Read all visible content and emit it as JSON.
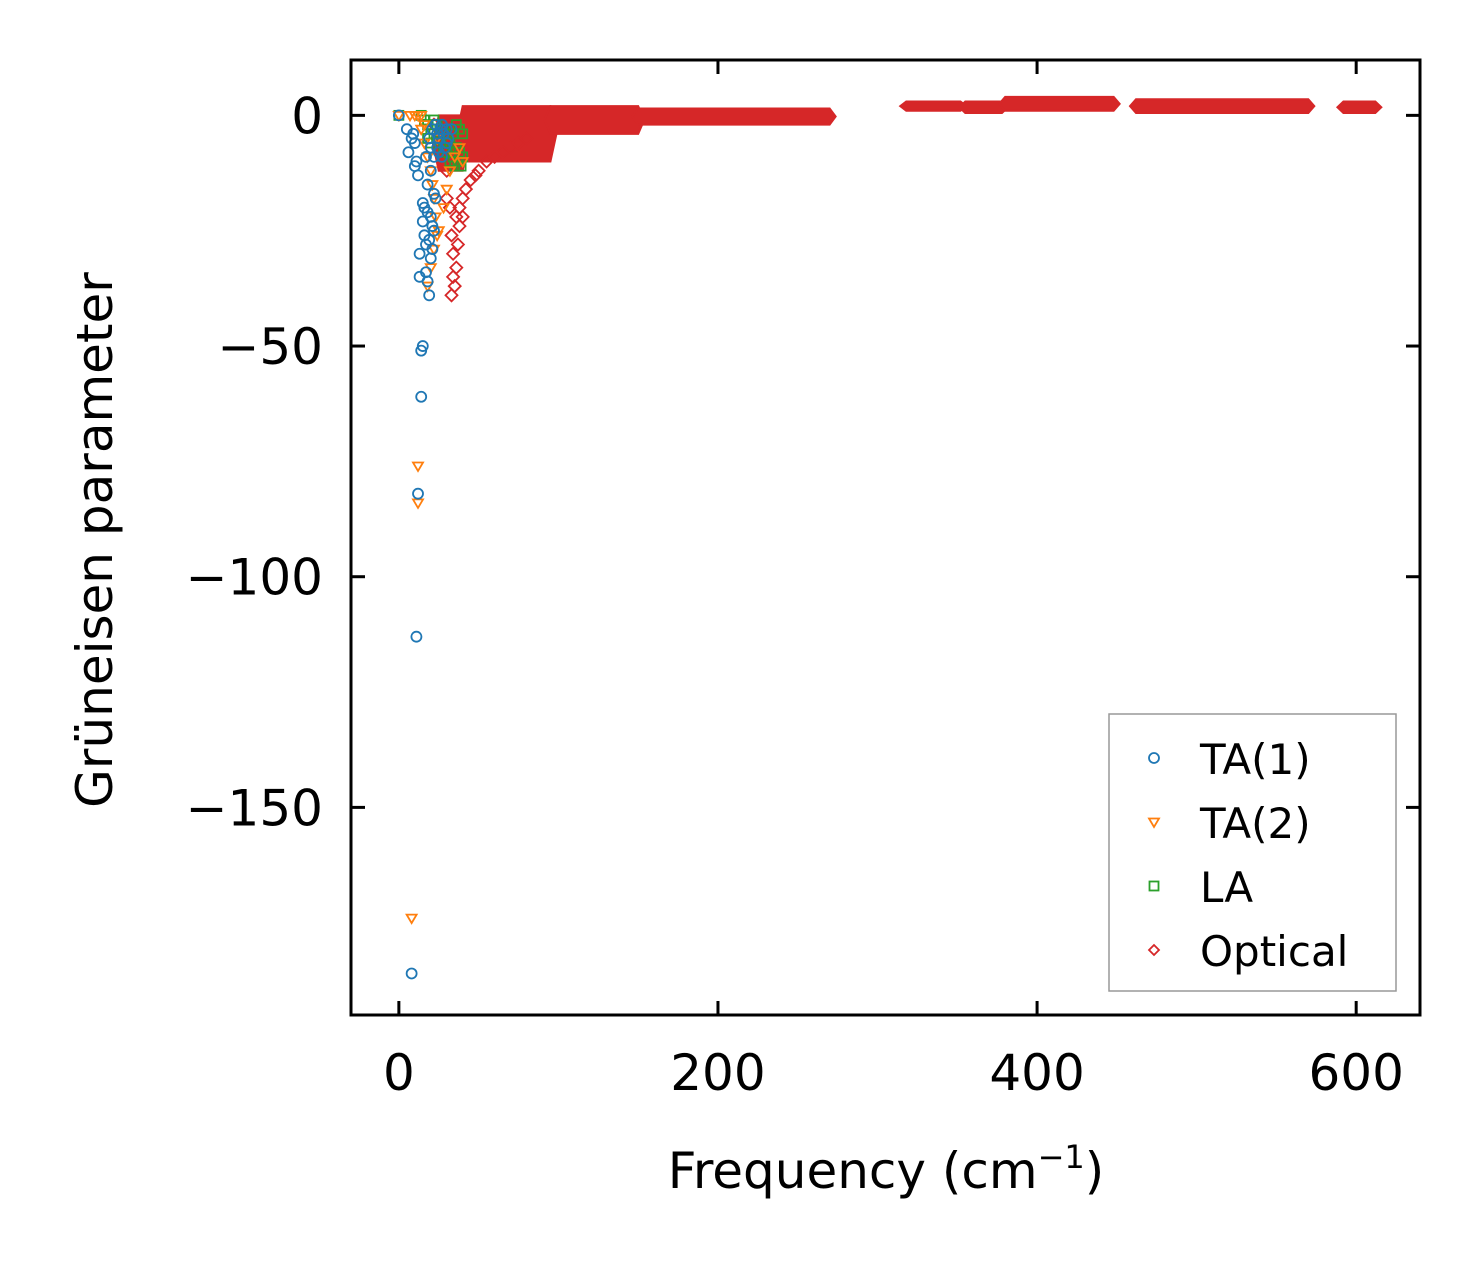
{
  "chart_data": {
    "type": "scatter",
    "title": "",
    "xlabel": "Frequency (cm",
    "xlabel_sup": "−1",
    "xlabel_close": ")",
    "ylabel": "Grüneisen parameter",
    "xlim": [
      -30,
      640
    ],
    "ylim": [
      -195,
      12
    ],
    "xticks": [
      0,
      200,
      400,
      600
    ],
    "xtick_labels": [
      "0",
      "200",
      "400",
      "600"
    ],
    "yticks": [
      0,
      -50,
      -100,
      -150
    ],
    "ytick_labels": [
      "0",
      "−50",
      "−100",
      "−150"
    ],
    "grid": false,
    "legend_position": "lower-right",
    "legend": [
      "TA(1)",
      "TA(2)",
      "LA",
      "Optical"
    ],
    "series": [
      {
        "name": "TA(1)",
        "marker": "circle",
        "color": "#1f77b4",
        "points": [
          [
            0,
            0
          ],
          [
            5,
            -3
          ],
          [
            6,
            -8
          ],
          [
            8,
            -5
          ],
          [
            9,
            -4
          ],
          [
            10,
            -6
          ],
          [
            10,
            -11
          ],
          [
            11,
            -10
          ],
          [
            12,
            -13
          ],
          [
            12,
            -82
          ],
          [
            11,
            -113
          ],
          [
            8,
            -186
          ],
          [
            13,
            -30
          ],
          [
            13,
            -35
          ],
          [
            14,
            -51
          ],
          [
            15,
            -50
          ],
          [
            14,
            -61
          ],
          [
            15,
            -19
          ],
          [
            15,
            -23
          ],
          [
            16,
            -20
          ],
          [
            16,
            -26
          ],
          [
            17,
            -28
          ],
          [
            17,
            -34
          ],
          [
            18,
            -21
          ],
          [
            18,
            -36
          ],
          [
            19,
            -27
          ],
          [
            19,
            -39
          ],
          [
            20,
            -22
          ],
          [
            20,
            -31
          ],
          [
            21,
            -24
          ],
          [
            21,
            -29
          ],
          [
            22,
            -25
          ],
          [
            22,
            -17
          ],
          [
            23,
            -18
          ],
          [
            18,
            -15
          ],
          [
            20,
            -12
          ],
          [
            22,
            -9
          ],
          [
            24,
            -7
          ],
          [
            25,
            -5
          ],
          [
            26,
            -3
          ],
          [
            28,
            -4
          ],
          [
            30,
            -6
          ],
          [
            19,
            -5
          ],
          [
            21,
            -3
          ],
          [
            23,
            -2
          ],
          [
            25,
            -8
          ],
          [
            27,
            -9
          ],
          [
            29,
            -7
          ],
          [
            31,
            -5
          ],
          [
            33,
            -3
          ],
          [
            17,
            -9
          ],
          [
            20,
            -7
          ],
          [
            24,
            -4
          ],
          [
            27,
            -2
          ],
          [
            30,
            -3
          ]
        ]
      },
      {
        "name": "TA(2)",
        "marker": "triangle-down",
        "color": "#ff7f0e",
        "points": [
          [
            0,
            0
          ],
          [
            7,
            0
          ],
          [
            10,
            0
          ],
          [
            12,
            0
          ],
          [
            14,
            0
          ],
          [
            8,
            -174
          ],
          [
            12,
            -76
          ],
          [
            12,
            -84
          ],
          [
            14,
            -3
          ],
          [
            16,
            -6
          ],
          [
            18,
            -9
          ],
          [
            20,
            -12
          ],
          [
            21,
            -15
          ],
          [
            22,
            -18
          ],
          [
            23,
            -22
          ],
          [
            24,
            -26
          ],
          [
            20,
            -33
          ],
          [
            18,
            -37
          ],
          [
            22,
            -29
          ],
          [
            25,
            -25
          ],
          [
            28,
            -20
          ],
          [
            30,
            -16
          ],
          [
            32,
            -12
          ],
          [
            35,
            -9
          ],
          [
            38,
            -7
          ],
          [
            40,
            -10
          ],
          [
            16,
            -2
          ],
          [
            24,
            -5
          ]
        ]
      },
      {
        "name": "LA",
        "marker": "square",
        "color": "#2ca02c",
        "points": [
          [
            0,
            0
          ],
          [
            14,
            0
          ],
          [
            16,
            -1
          ],
          [
            18,
            -2
          ],
          [
            20,
            -3
          ],
          [
            22,
            -1
          ],
          [
            24,
            -2
          ],
          [
            26,
            -4
          ],
          [
            28,
            -3
          ],
          [
            30,
            -5
          ],
          [
            32,
            -6
          ],
          [
            34,
            -4
          ],
          [
            36,
            -7
          ],
          [
            38,
            -8
          ],
          [
            40,
            -9
          ],
          [
            40,
            -4
          ],
          [
            38,
            -3
          ],
          [
            36,
            -2
          ],
          [
            34,
            -9
          ],
          [
            32,
            -10
          ],
          [
            30,
            -8
          ],
          [
            28,
            -7
          ],
          [
            26,
            -6
          ],
          [
            24,
            -5
          ],
          [
            22,
            -4
          ],
          [
            20,
            -6
          ],
          [
            18,
            -5
          ],
          [
            39,
            -11
          ],
          [
            37,
            -10
          ],
          [
            35,
            -11
          ]
        ]
      },
      {
        "name": "Optical",
        "marker": "diamond",
        "color": "#d62728",
        "points": [
          [
            22,
            -2
          ],
          [
            24,
            -5
          ],
          [
            26,
            -8
          ],
          [
            28,
            -10
          ],
          [
            30,
            -12
          ],
          [
            30,
            -18
          ],
          [
            32,
            -20
          ],
          [
            33,
            -26
          ],
          [
            34,
            -30
          ],
          [
            34,
            -35
          ],
          [
            35,
            -37
          ],
          [
            33,
            -39
          ],
          [
            36,
            -33
          ],
          [
            37,
            -28
          ],
          [
            38,
            -24
          ],
          [
            38,
            -20
          ],
          [
            40,
            -18
          ],
          [
            42,
            -16
          ],
          [
            45,
            -14
          ],
          [
            48,
            -13
          ],
          [
            50,
            -12
          ],
          [
            55,
            -10
          ],
          [
            60,
            -9
          ],
          [
            65,
            -8
          ],
          [
            70,
            -7
          ],
          [
            75,
            -6
          ],
          [
            80,
            -5
          ],
          [
            40,
            -22
          ],
          [
            36,
            -22
          ]
        ],
        "bands": [
          {
            "x_start": 25,
            "x_end": 40,
            "y_top": 0,
            "y_bottom": -12
          },
          {
            "x_start": 40,
            "x_end": 95,
            "y_top": 2,
            "y_bottom": -10
          },
          {
            "x_start": 95,
            "x_end": 150,
            "y_top": 2,
            "y_bottom": -4
          },
          {
            "x_start": 150,
            "x_end": 270,
            "y_top": 1.5,
            "y_bottom": -2
          },
          {
            "x_start": 318,
            "x_end": 352,
            "y_top": 3,
            "y_bottom": 1
          },
          {
            "x_start": 355,
            "x_end": 378,
            "y_top": 3,
            "y_bottom": 0.5
          },
          {
            "x_start": 380,
            "x_end": 448,
            "y_top": 4,
            "y_bottom": 1
          },
          {
            "x_start": 462,
            "x_end": 570,
            "y_top": 3.5,
            "y_bottom": 0.5
          },
          {
            "x_start": 592,
            "x_end": 612,
            "y_top": 3,
            "y_bottom": 0.5
          }
        ]
      }
    ]
  }
}
